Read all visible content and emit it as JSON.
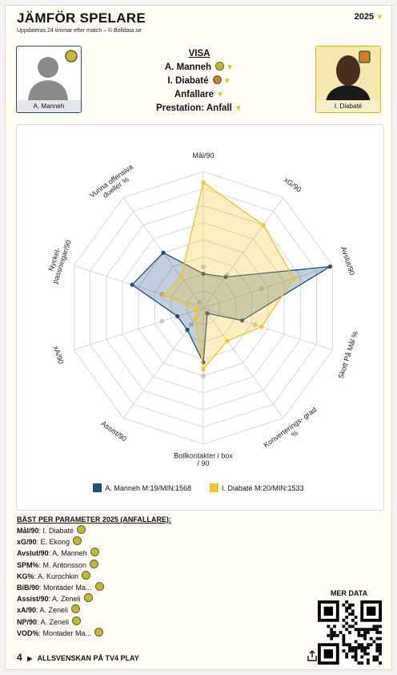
{
  "header": {
    "title": "JÄMFÖR SPELARE",
    "subtitle": "Uppdateras 24 timmar efter match – © Bolldata.se",
    "year": "2025"
  },
  "players": {
    "left_name": "A. Manneh",
    "right_name": "I. Diabaté"
  },
  "visa": {
    "heading": "VISA",
    "player1": "A. Manneh",
    "player2": "I. Diabaté",
    "position": "Anfallare",
    "prestation": "Prestation: Anfall"
  },
  "colors": {
    "series1": "#1f4f80",
    "series2": "#f5c518"
  },
  "chart_data": {
    "type": "radar",
    "axes": [
      "Mål/90",
      "xG/90",
      "Avslut/90",
      "Skott På Mål %",
      "Konverterings- grad %",
      "Bollkontakter i box / 90",
      "Assist/90",
      "xA/90",
      "Nyckel- passningar/90",
      "Vunna offensiva dueller %"
    ],
    "range": [
      0,
      1
    ],
    "series": [
      {
        "name": "A. Manneh M:19/MIN:1568",
        "color": "#1f4f80",
        "values": [
          0.25,
          0.28,
          0.98,
          0.3,
          0.05,
          0.4,
          0.2,
          0.2,
          0.55,
          0.5
        ]
      },
      {
        "name": "I. Diabaté M:20/MIN:1533",
        "color": "#f5c518",
        "values": [
          0.92,
          0.75,
          0.7,
          0.45,
          0.3,
          0.45,
          0.1,
          0.05,
          0.3,
          0.28
        ]
      }
    ],
    "extra_markers": [
      0.3,
      0.3,
      0.45,
      0.4,
      0.05,
      0.5,
      0.15,
      0.32,
      0.32,
      0.05
    ]
  },
  "best": {
    "heading": "BÄST PER PARAMETER 2025 (ANFALLARE):",
    "rows": [
      {
        "label": "Mål/90",
        "value": ": I. Diabaté"
      },
      {
        "label": "xG/90",
        "value": ": E. Ekong"
      },
      {
        "label": "Avslut/90",
        "value": ": A. Manneh"
      },
      {
        "label": "SPM%",
        "value": ": M. Antonsson"
      },
      {
        "label": "KG%",
        "value": ": A. Kurochkin"
      },
      {
        "label": "BiB/90",
        "value": ": Montader Ma..."
      },
      {
        "label": "Assist/90",
        "value": ": A. Zeneli"
      },
      {
        "label": "xA/90",
        "value": ": A. Zeneli"
      },
      {
        "label": "NP/90",
        "value": ": A. Zeneli"
      },
      {
        "label": "VOD%",
        "value": ": Montader Ma..."
      }
    ]
  },
  "more_data": "MER DATA",
  "footer": {
    "brand": "4",
    "text": "ALLSVENSKAN PÅ TV4 PLAY"
  }
}
